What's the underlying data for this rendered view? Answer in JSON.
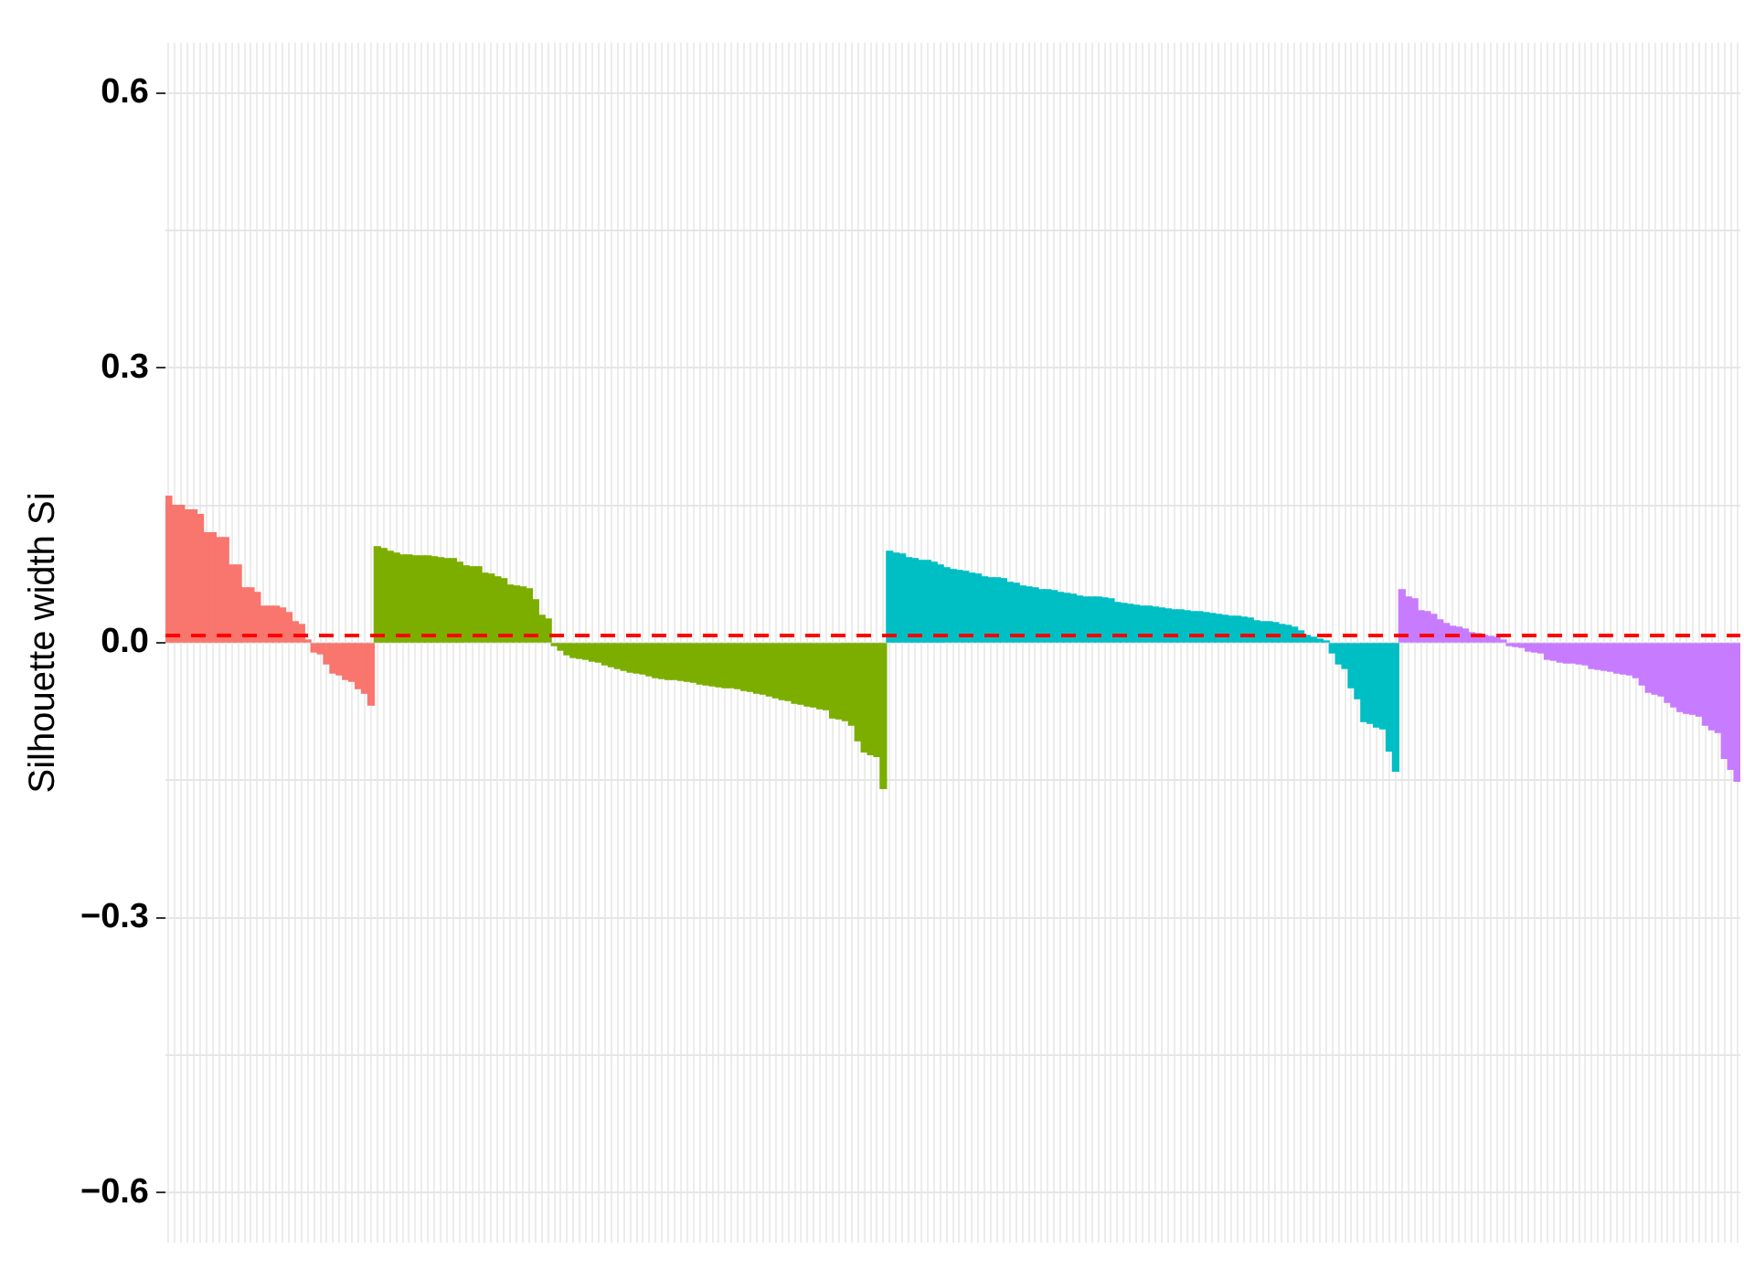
{
  "chart_data": {
    "type": "bar",
    "ylabel": "Silhouette width Si",
    "categories": [
      null,
      null,
      null,
      null,
      null,
      null,
      null,
      null,
      null,
      null,
      null,
      null,
      null,
      null,
      null,
      null,
      null,
      null,
      null,
      null,
      null,
      null,
      null,
      null,
      null,
      null,
      null,
      null,
      null,
      null,
      null,
      null,
      null,
      null,
      null,
      null,
      null,
      null,
      null,
      null,
      null,
      null,
      null,
      null,
      null,
      null,
      null,
      null,
      null,
      null,
      null,
      null,
      null,
      null,
      null,
      null,
      null,
      null,
      null,
      null,
      null,
      null,
      null,
      null,
      null,
      null,
      null,
      null,
      null,
      null,
      null,
      null,
      null,
      null,
      null,
      null,
      null,
      null,
      null,
      null,
      null,
      null,
      null,
      null,
      null,
      null,
      null,
      null,
      null,
      null,
      null,
      null,
      null,
      null,
      null,
      null,
      null,
      null,
      null,
      null,
      null,
      null,
      null,
      null,
      null,
      null,
      null,
      null,
      null,
      null,
      null,
      null,
      null,
      null,
      null,
      null,
      null,
      null,
      null,
      null,
      null,
      null,
      null,
      null,
      null,
      null,
      null,
      null,
      null,
      null,
      null,
      null,
      null,
      null,
      null,
      null,
      null,
      null,
      null,
      null,
      null,
      null,
      null,
      null,
      null,
      null,
      null,
      null,
      null,
      null,
      null,
      null,
      null,
      null,
      null,
      null,
      null,
      null,
      null,
      null,
      null,
      null,
      null,
      null,
      null,
      null,
      null,
      null,
      null,
      null,
      null,
      null,
      null,
      null,
      null,
      null,
      null,
      null,
      null,
      null,
      null,
      null,
      null,
      null,
      null,
      null,
      null,
      null,
      null,
      null,
      null,
      null,
      null,
      null,
      null,
      null,
      null,
      null,
      null,
      null,
      null,
      null,
      null,
      null,
      null,
      null,
      null,
      null,
      null,
      null,
      null,
      null,
      null,
      null,
      null,
      null,
      null,
      null,
      null,
      null,
      null,
      null,
      null,
      null,
      null,
      null,
      null,
      null,
      null,
      null,
      null,
      null,
      null,
      null,
      null,
      null,
      null,
      null,
      null,
      null,
      null,
      null,
      null,
      null,
      null,
      null,
      null,
      null,
      null
    ],
    "series": [
      {
        "color": "#f8766d",
        "values": [
          0.16,
          0.15,
          0.15,
          0.145,
          0.145,
          0.14,
          0.12,
          0.12,
          0.115,
          0.115,
          0.085,
          0.085,
          0.06,
          0.06,
          0.055,
          0.04,
          0.04,
          0.04,
          0.038,
          0.033,
          0.023,
          0.02,
          0.003,
          -0.01,
          -0.012,
          -0.023,
          -0.033,
          -0.035,
          -0.04,
          -0.042,
          -0.05,
          -0.055,
          -0.068,
          null,
          null,
          null,
          null,
          null,
          null,
          null,
          null,
          null,
          null,
          null,
          null,
          null,
          null,
          null,
          null,
          null,
          null,
          null,
          null,
          null,
          null,
          null,
          null,
          null,
          null,
          null,
          null,
          null,
          null,
          null,
          null,
          null,
          null,
          null,
          null,
          null,
          null,
          null,
          null,
          null,
          null,
          null,
          null,
          null,
          null,
          null,
          null,
          null,
          null,
          null,
          null,
          null,
          null,
          null,
          null,
          null,
          null,
          null,
          null,
          null,
          null,
          null,
          null,
          null,
          null,
          null,
          null,
          null,
          null,
          null,
          null,
          null,
          null,
          null,
          null,
          null,
          null,
          null,
          null,
          null,
          null,
          null,
          null,
          null,
          null,
          null,
          null,
          null,
          null,
          null,
          null,
          null,
          null,
          null,
          null,
          null,
          null,
          null,
          null,
          null,
          null,
          null,
          null,
          null,
          null,
          null,
          null,
          null,
          null,
          null,
          null,
          null,
          null,
          null,
          null,
          null,
          null,
          null,
          null,
          null,
          null,
          null,
          null,
          null,
          null,
          null,
          null,
          null,
          null,
          null,
          null,
          null,
          null,
          null,
          null,
          null,
          null,
          null,
          null,
          null,
          null,
          null,
          null,
          null,
          null,
          null,
          null,
          null,
          null,
          null,
          null,
          null,
          null,
          null,
          null,
          null,
          null,
          null,
          null,
          null,
          null,
          null,
          null,
          null,
          null,
          null,
          null,
          null,
          null,
          null,
          null,
          null,
          null,
          null,
          null,
          null,
          null,
          null,
          null,
          null,
          null,
          null,
          null,
          null,
          null,
          null,
          null,
          null,
          null,
          null,
          null,
          null,
          null,
          null,
          null,
          null,
          null,
          null,
          null,
          null,
          null,
          null,
          null,
          null,
          null,
          null,
          null,
          null,
          null,
          null,
          null,
          null,
          null,
          null,
          null
        ]
      },
      {
        "color": "#7cae00",
        "values": [
          null,
          null,
          null,
          null,
          null,
          null,
          null,
          null,
          null,
          null,
          null,
          null,
          null,
          null,
          null,
          null,
          null,
          null,
          null,
          null,
          null,
          null,
          null,
          null,
          null,
          null,
          null,
          null,
          null,
          null,
          null,
          null,
          null,
          0.105,
          0.103,
          0.1,
          0.098,
          0.096,
          0.096,
          0.095,
          0.095,
          0.095,
          0.094,
          0.093,
          0.092,
          0.092,
          0.088,
          0.084,
          0.083,
          0.083,
          0.076,
          0.075,
          0.072,
          0.07,
          0.063,
          0.062,
          0.061,
          0.059,
          0.047,
          0.03,
          0.026,
          -0.003,
          -0.008,
          -0.013,
          -0.016,
          -0.017,
          -0.018,
          -0.02,
          -0.021,
          -0.024,
          -0.026,
          -0.028,
          -0.03,
          -0.032,
          -0.033,
          -0.034,
          -0.036,
          -0.038,
          -0.039,
          -0.04,
          -0.04,
          -0.041,
          -0.042,
          -0.043,
          -0.045,
          -0.046,
          -0.047,
          -0.048,
          -0.049,
          -0.049,
          -0.05,
          -0.052,
          -0.053,
          -0.055,
          -0.056,
          -0.058,
          -0.06,
          -0.062,
          -0.063,
          -0.066,
          -0.067,
          -0.069,
          -0.07,
          -0.072,
          -0.073,
          -0.082,
          -0.083,
          -0.085,
          -0.09,
          -0.107,
          -0.119,
          -0.122,
          -0.124,
          -0.159,
          null,
          null,
          null,
          null,
          null,
          null,
          null,
          null,
          null,
          null,
          null,
          null,
          null,
          null,
          null,
          null,
          null,
          null,
          null,
          null,
          null,
          null,
          null,
          null,
          null,
          null,
          null,
          null,
          null,
          null,
          null,
          null,
          null,
          null,
          null,
          null,
          null,
          null,
          null,
          null,
          null,
          null,
          null,
          null,
          null,
          null,
          null,
          null,
          null,
          null,
          null,
          null,
          null,
          null,
          null,
          null,
          null,
          null,
          null,
          null,
          null,
          null,
          null,
          null,
          null,
          null,
          null,
          null,
          null,
          null,
          null,
          null,
          null,
          null,
          null,
          null,
          null,
          null,
          null,
          null,
          null,
          null,
          null,
          null,
          null,
          null,
          null,
          null,
          null,
          null,
          null,
          null,
          null,
          null,
          null,
          null,
          null,
          null,
          null,
          null,
          null,
          null,
          null,
          null,
          null,
          null,
          null,
          null,
          null,
          null,
          null,
          null,
          null,
          null,
          null,
          null,
          null,
          null,
          null,
          null,
          null,
          null,
          null,
          null,
          null,
          null,
          null,
          null,
          null,
          null,
          null,
          null,
          null,
          null,
          null
        ]
      },
      {
        "color": "#00bfc4",
        "values": [
          null,
          null,
          null,
          null,
          null,
          null,
          null,
          null,
          null,
          null,
          null,
          null,
          null,
          null,
          null,
          null,
          null,
          null,
          null,
          null,
          null,
          null,
          null,
          null,
          null,
          null,
          null,
          null,
          null,
          null,
          null,
          null,
          null,
          null,
          null,
          null,
          null,
          null,
          null,
          null,
          null,
          null,
          null,
          null,
          null,
          null,
          null,
          null,
          null,
          null,
          null,
          null,
          null,
          null,
          null,
          null,
          null,
          null,
          null,
          null,
          null,
          null,
          null,
          null,
          null,
          null,
          null,
          null,
          null,
          null,
          null,
          null,
          null,
          null,
          null,
          null,
          null,
          null,
          null,
          null,
          null,
          null,
          null,
          null,
          null,
          null,
          null,
          null,
          null,
          null,
          null,
          null,
          null,
          null,
          null,
          null,
          null,
          null,
          null,
          null,
          null,
          null,
          null,
          null,
          null,
          null,
          null,
          null,
          null,
          null,
          null,
          null,
          null,
          null,
          0.1,
          0.098,
          0.097,
          0.093,
          0.092,
          0.09,
          0.09,
          0.088,
          0.085,
          0.082,
          0.08,
          0.079,
          0.078,
          0.076,
          0.075,
          0.072,
          0.071,
          0.071,
          0.07,
          0.066,
          0.065,
          0.062,
          0.061,
          0.06,
          0.058,
          0.058,
          0.057,
          0.055,
          0.054,
          0.053,
          0.051,
          0.05,
          0.05,
          0.05,
          0.049,
          0.048,
          0.044,
          0.043,
          0.042,
          0.041,
          0.04,
          0.04,
          0.039,
          0.038,
          0.037,
          0.036,
          0.036,
          0.035,
          0.034,
          0.034,
          0.033,
          0.032,
          0.031,
          0.03,
          0.029,
          0.029,
          0.028,
          0.027,
          0.024,
          0.023,
          0.023,
          0.022,
          0.02,
          0.019,
          0.017,
          0.013,
          0.008,
          0.006,
          0.004,
          0.002,
          -0.011,
          -0.023,
          -0.028,
          -0.049,
          -0.061,
          -0.086,
          -0.088,
          -0.092,
          -0.094,
          -0.118,
          -0.14,
          null,
          null,
          null,
          null,
          null,
          null,
          null,
          null,
          null,
          null,
          null,
          null,
          null,
          null,
          null,
          null,
          null,
          null,
          null,
          null,
          null,
          null,
          null,
          null,
          null,
          null,
          null,
          null,
          null,
          null,
          null,
          null,
          null,
          null,
          null,
          null,
          null,
          null,
          null,
          null,
          null,
          null,
          null,
          null,
          null,
          null,
          null,
          null,
          null,
          null,
          null,
          null,
          null,
          null
        ]
      },
      {
        "color": "#c77cff",
        "values": [
          null,
          null,
          null,
          null,
          null,
          null,
          null,
          null,
          null,
          null,
          null,
          null,
          null,
          null,
          null,
          null,
          null,
          null,
          null,
          null,
          null,
          null,
          null,
          null,
          null,
          null,
          null,
          null,
          null,
          null,
          null,
          null,
          null,
          null,
          null,
          null,
          null,
          null,
          null,
          null,
          null,
          null,
          null,
          null,
          null,
          null,
          null,
          null,
          null,
          null,
          null,
          null,
          null,
          null,
          null,
          null,
          null,
          null,
          null,
          null,
          null,
          null,
          null,
          null,
          null,
          null,
          null,
          null,
          null,
          null,
          null,
          null,
          null,
          null,
          null,
          null,
          null,
          null,
          null,
          null,
          null,
          null,
          null,
          null,
          null,
          null,
          null,
          null,
          null,
          null,
          null,
          null,
          null,
          null,
          null,
          null,
          null,
          null,
          null,
          null,
          null,
          null,
          null,
          null,
          null,
          null,
          null,
          null,
          null,
          null,
          null,
          null,
          null,
          null,
          null,
          null,
          null,
          null,
          null,
          null,
          null,
          null,
          null,
          null,
          null,
          null,
          null,
          null,
          null,
          null,
          null,
          null,
          null,
          null,
          null,
          null,
          null,
          null,
          null,
          null,
          null,
          null,
          null,
          null,
          null,
          null,
          null,
          null,
          null,
          null,
          null,
          null,
          null,
          null,
          null,
          null,
          null,
          null,
          null,
          null,
          null,
          null,
          null,
          null,
          null,
          null,
          null,
          null,
          null,
          null,
          null,
          null,
          null,
          null,
          null,
          null,
          null,
          null,
          null,
          null,
          null,
          null,
          null,
          null,
          null,
          null,
          null,
          null,
          null,
          null,
          null,
          null,
          null,
          null,
          null,
          0.058,
          0.05,
          0.048,
          0.035,
          0.034,
          0.031,
          0.025,
          0.021,
          0.018,
          0.017,
          0.015,
          0.011,
          0.01,
          0.008,
          0.007,
          0.006,
          0.003,
          -0.003,
          -0.004,
          -0.005,
          -0.009,
          -0.01,
          -0.011,
          -0.018,
          -0.019,
          -0.021,
          -0.022,
          -0.022,
          -0.023,
          -0.024,
          -0.028,
          -0.029,
          -0.03,
          -0.031,
          -0.033,
          -0.034,
          -0.035,
          -0.038,
          -0.046,
          -0.054,
          -0.056,
          -0.058,
          -0.065,
          -0.07,
          -0.075,
          -0.077,
          -0.078,
          -0.08,
          -0.09,
          -0.095,
          -0.098,
          -0.126,
          -0.138,
          -0.151
        ]
      }
    ],
    "ylim": [
      -0.655,
      0.655
    ],
    "yticks": [
      {
        "value": -0.6,
        "label": "−0.6"
      },
      {
        "value": -0.45,
        "label": null
      },
      {
        "value": -0.3,
        "label": "−0.3"
      },
      {
        "value": -0.15,
        "label": null
      },
      {
        "value": 0,
        "label": "0.0"
      },
      {
        "value": 0.15,
        "label": null
      },
      {
        "value": 0.3,
        "label": "0.3"
      },
      {
        "value": 0.45,
        "label": null
      },
      {
        "value": 0.6,
        "label": "0.6"
      }
    ],
    "ref_lines": [
      {
        "axis": "y",
        "value": 0.008,
        "color": "#ff0000",
        "line_style": "dashed"
      }
    ],
    "grid": true,
    "legend": false,
    "tick_labels": "y"
  }
}
